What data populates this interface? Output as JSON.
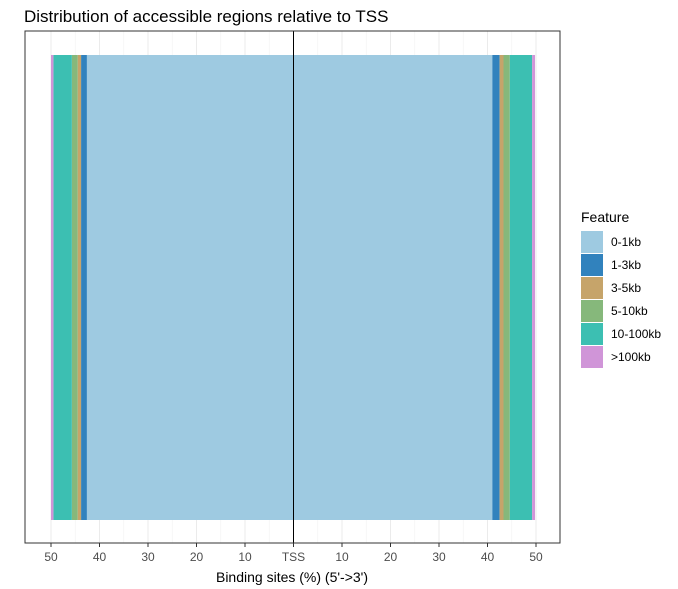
{
  "chart_data": {
    "type": "bar",
    "orientation": "horizontal-stacked-diverging",
    "title": "Distribution of accessible regions relative to TSS",
    "xlabel": "Binding sites (%) (5'->3')",
    "ylabel": "",
    "x_ticks": [
      "50",
      "40",
      "30",
      "20",
      "10",
      "TSS",
      "10",
      "20",
      "30",
      "40",
      "50"
    ],
    "x_tick_values": [
      -50,
      -40,
      -30,
      -20,
      -10,
      0,
      10,
      20,
      30,
      40,
      50
    ],
    "xlim": [
      -50,
      50
    ],
    "legend_title": "Feature",
    "legend_position": "right",
    "grid": true,
    "series": [
      {
        "name": "0-1kb",
        "color": "#9ecae1",
        "upstream": 42.6,
        "downstream": 41.0
      },
      {
        "name": "1-3kb",
        "color": "#3182bd",
        "upstream": 1.2,
        "downstream": 1.5
      },
      {
        "name": "3-5kb",
        "color": "#c6a46a",
        "upstream": 0.7,
        "downstream": 0.8
      },
      {
        "name": "5-10kb",
        "color": "#86b87b",
        "upstream": 1.2,
        "downstream": 1.3
      },
      {
        "name": "10-100kb",
        "color": "#3cbfb2",
        "upstream": 3.8,
        "downstream": 4.6
      },
      {
        "name": ">100kb",
        "color": "#d095d8",
        "upstream": 0.5,
        "downstream": 0.6
      }
    ]
  }
}
